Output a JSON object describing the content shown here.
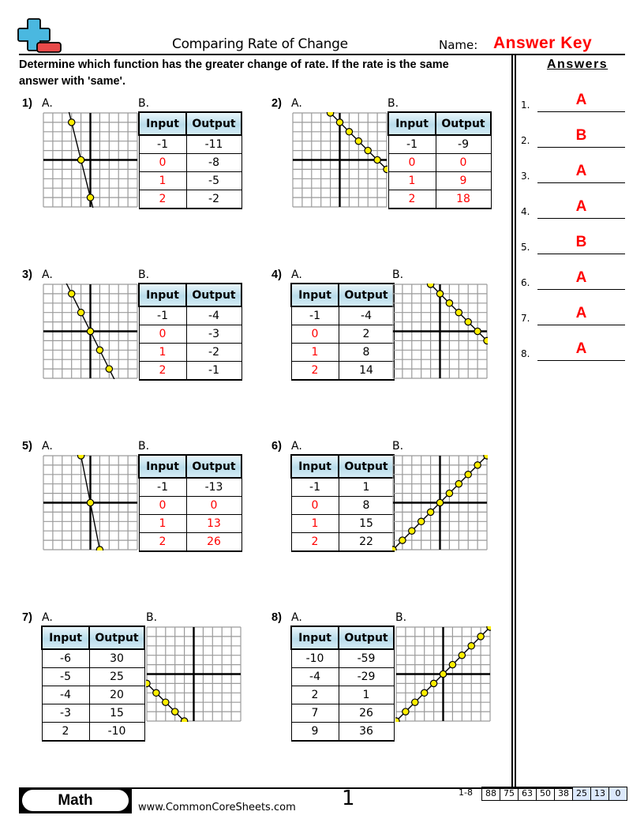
{
  "header": {
    "title": "Comparing Rate of Change",
    "name_label": "Name:",
    "name_value": "Answer Key",
    "instructions_line1": "Determine which function has the greater change of rate. If the rate is the same",
    "instructions_line2": "answer with 'same'.",
    "logo_icon": "plus-minus-icon",
    "colors": {
      "accent_red": "#ff0000",
      "plus_blue": "#4ab8e0",
      "minus_red": "#e84a4a"
    }
  },
  "table_headers": {
    "input": "Input",
    "output": "Output"
  },
  "problems": [
    {
      "num": "1)",
      "label_a": "A.",
      "label_b": "B.",
      "table_side": "B",
      "graph_points": [
        [
          -2,
          4
        ],
        [
          -1,
          0
        ],
        [
          0,
          -4
        ]
      ],
      "slope": -4,
      "rows": [
        {
          "in": "-1",
          "out": "-11",
          "in_red": false,
          "out_red": false
        },
        {
          "in": "0",
          "out": "-8",
          "in_red": true,
          "out_red": false
        },
        {
          "in": "1",
          "out": "-5",
          "in_red": true,
          "out_red": false
        },
        {
          "in": "2",
          "out": "-2",
          "in_red": true,
          "out_red": false
        }
      ]
    },
    {
      "num": "2)",
      "label_a": "A.",
      "label_b": "B.",
      "table_side": "B",
      "graph_points": [
        [
          -1,
          5
        ],
        [
          0,
          4
        ],
        [
          1,
          3
        ],
        [
          2,
          2
        ],
        [
          3,
          1
        ],
        [
          4,
          0
        ],
        [
          5,
          -1
        ]
      ],
      "slope": -1,
      "rows": [
        {
          "in": "-1",
          "out": "-9",
          "in_red": false,
          "out_red": false
        },
        {
          "in": "0",
          "out": "0",
          "in_red": true,
          "out_red": true
        },
        {
          "in": "1",
          "out": "9",
          "in_red": true,
          "out_red": true
        },
        {
          "in": "2",
          "out": "18",
          "in_red": true,
          "out_red": true
        }
      ]
    },
    {
      "num": "3)",
      "label_a": "A.",
      "label_b": "B.",
      "table_side": "B",
      "graph_points": [
        [
          -2,
          4
        ],
        [
          -1,
          2
        ],
        [
          0,
          0
        ],
        [
          1,
          -2
        ],
        [
          2,
          -4
        ]
      ],
      "slope": -2,
      "rows": [
        {
          "in": "-1",
          "out": "-4",
          "in_red": false,
          "out_red": false
        },
        {
          "in": "0",
          "out": "-3",
          "in_red": true,
          "out_red": false
        },
        {
          "in": "1",
          "out": "-2",
          "in_red": true,
          "out_red": false
        },
        {
          "in": "2",
          "out": "-1",
          "in_red": true,
          "out_red": false
        }
      ]
    },
    {
      "num": "4)",
      "label_a": "A.",
      "label_b": "B.",
      "table_side": "A",
      "graph_points": [
        [
          -1,
          5
        ],
        [
          0,
          4
        ],
        [
          1,
          3
        ],
        [
          2,
          2
        ],
        [
          3,
          1
        ],
        [
          4,
          0
        ],
        [
          5,
          -1
        ]
      ],
      "slope": -1,
      "rows": [
        {
          "in": "-1",
          "out": "-4",
          "in_red": false,
          "out_red": false
        },
        {
          "in": "0",
          "out": "2",
          "in_red": true,
          "out_red": false
        },
        {
          "in": "1",
          "out": "8",
          "in_red": true,
          "out_red": false
        },
        {
          "in": "2",
          "out": "14",
          "in_red": true,
          "out_red": false
        }
      ]
    },
    {
      "num": "5)",
      "label_a": "A.",
      "label_b": "B.",
      "table_side": "B",
      "graph_points": [
        [
          -1,
          5
        ],
        [
          0,
          0
        ],
        [
          1,
          -5
        ]
      ],
      "slope": -5,
      "rows": [
        {
          "in": "-1",
          "out": "-13",
          "in_red": false,
          "out_red": false
        },
        {
          "in": "0",
          "out": "0",
          "in_red": true,
          "out_red": true
        },
        {
          "in": "1",
          "out": "13",
          "in_red": true,
          "out_red": true
        },
        {
          "in": "2",
          "out": "26",
          "in_red": true,
          "out_red": true
        }
      ]
    },
    {
      "num": "6)",
      "label_a": "A.",
      "label_b": "B.",
      "table_side": "A",
      "graph_points": [
        [
          -5,
          -5
        ],
        [
          -4,
          -4
        ],
        [
          -3,
          -3
        ],
        [
          -2,
          -2
        ],
        [
          -1,
          -1
        ],
        [
          0,
          0
        ],
        [
          1,
          1
        ],
        [
          2,
          2
        ],
        [
          3,
          3
        ],
        [
          4,
          4
        ],
        [
          5,
          5
        ]
      ],
      "slope": 1,
      "rows": [
        {
          "in": "-1",
          "out": "1",
          "in_red": false,
          "out_red": false
        },
        {
          "in": "0",
          "out": "8",
          "in_red": true,
          "out_red": false
        },
        {
          "in": "1",
          "out": "15",
          "in_red": true,
          "out_red": false
        },
        {
          "in": "2",
          "out": "22",
          "in_red": true,
          "out_red": false
        }
      ]
    },
    {
      "num": "7)",
      "label_a": "A.",
      "label_b": "B.",
      "table_side": "A",
      "graph_points": [
        [
          -5,
          -1
        ],
        [
          -4,
          -2
        ],
        [
          -3,
          -3
        ],
        [
          -2,
          -4
        ],
        [
          -1,
          -5
        ]
      ],
      "slope": -1,
      "rows": [
        {
          "in": "-6",
          "out": "30",
          "in_red": false,
          "out_red": false
        },
        {
          "in": "-5",
          "out": "25",
          "in_red": false,
          "out_red": false
        },
        {
          "in": "-4",
          "out": "20",
          "in_red": false,
          "out_red": false
        },
        {
          "in": "-3",
          "out": "15",
          "in_red": false,
          "out_red": false
        },
        {
          "in": "2",
          "out": "-10",
          "in_red": false,
          "out_red": false
        }
      ]
    },
    {
      "num": "8)",
      "label_a": "A.",
      "label_b": "B.",
      "table_side": "A",
      "graph_points": [
        [
          -5,
          -5
        ],
        [
          -4,
          -4
        ],
        [
          -3,
          -3
        ],
        [
          -2,
          -2
        ],
        [
          -1,
          -1
        ],
        [
          0,
          0
        ],
        [
          1,
          1
        ],
        [
          2,
          2
        ],
        [
          3,
          3
        ],
        [
          4,
          4
        ],
        [
          5,
          5
        ]
      ],
      "slope": 1,
      "rows": [
        {
          "in": "-10",
          "out": "-59",
          "in_red": false,
          "out_red": false
        },
        {
          "in": "-4",
          "out": "-29",
          "in_red": false,
          "out_red": false
        },
        {
          "in": "2",
          "out": "1",
          "in_red": false,
          "out_red": false
        },
        {
          "in": "7",
          "out": "26",
          "in_red": false,
          "out_red": false
        },
        {
          "in": "9",
          "out": "36",
          "in_red": false,
          "out_red": false
        }
      ]
    }
  ],
  "answers": {
    "title": "Answers",
    "items": [
      {
        "num": "1.",
        "value": "A"
      },
      {
        "num": "2.",
        "value": "B"
      },
      {
        "num": "3.",
        "value": "A"
      },
      {
        "num": "4.",
        "value": "A"
      },
      {
        "num": "5.",
        "value": "B"
      },
      {
        "num": "6.",
        "value": "A"
      },
      {
        "num": "7.",
        "value": "A"
      },
      {
        "num": "8.",
        "value": "A"
      }
    ]
  },
  "footer": {
    "subject": "Math",
    "website": "www.CommonCoreSheets.com",
    "page": "1",
    "score_range": "1-8",
    "scores": [
      "88",
      "75",
      "63",
      "50",
      "38",
      "25",
      "13",
      "0"
    ],
    "blue_from_index": 5
  }
}
